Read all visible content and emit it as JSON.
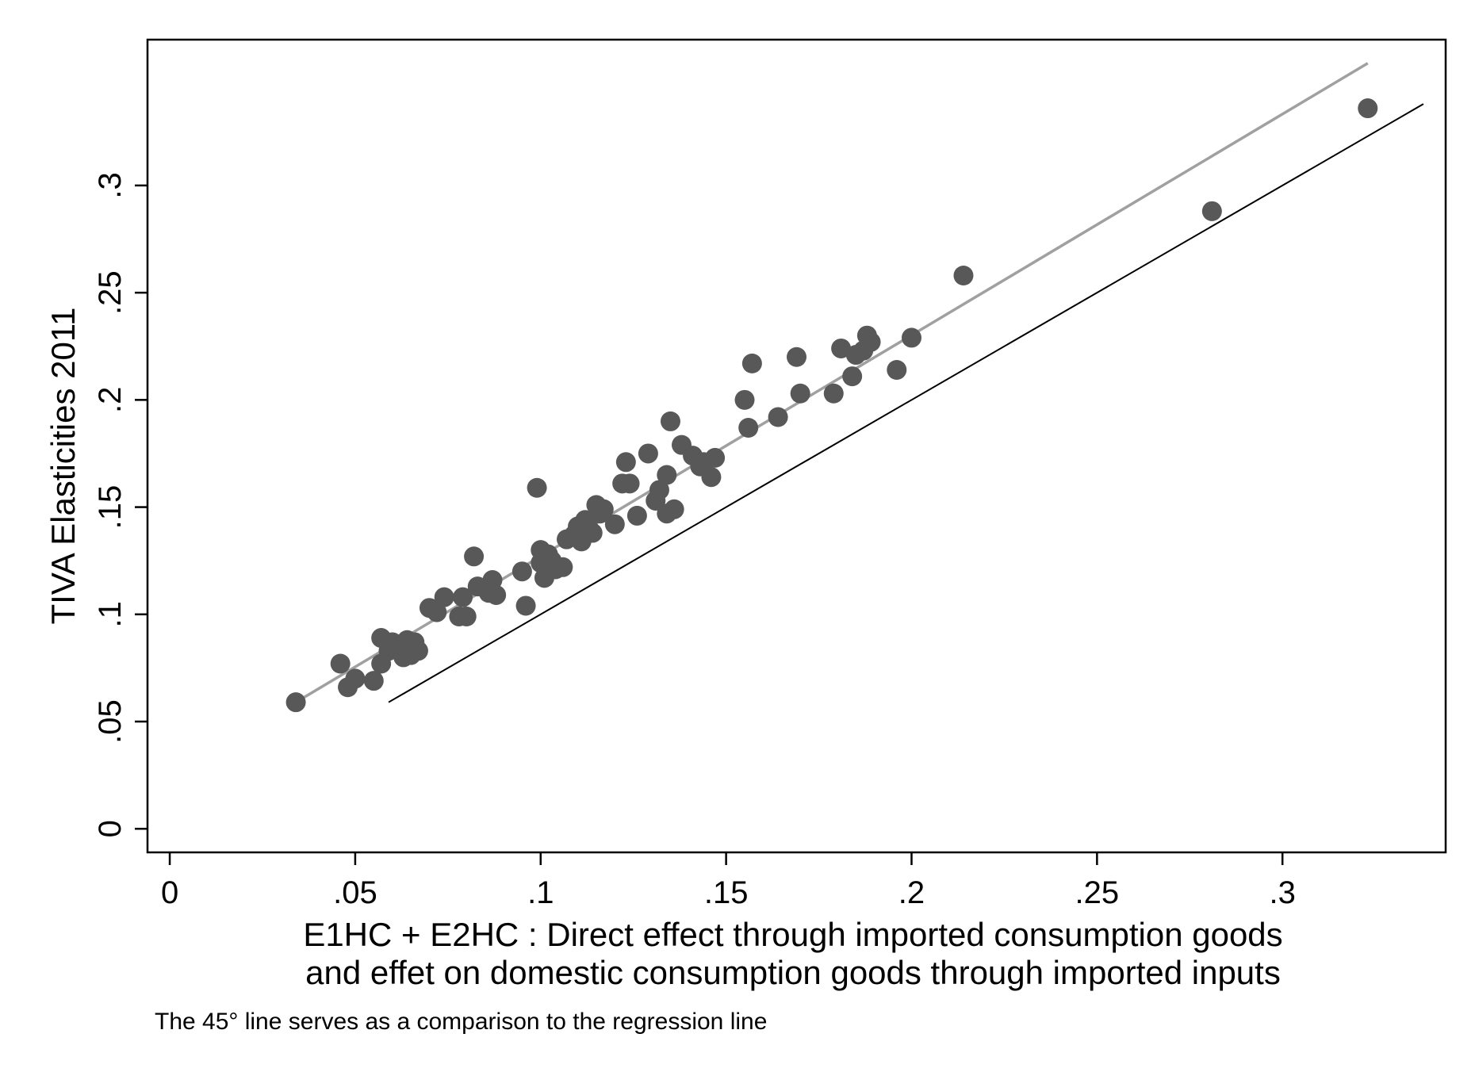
{
  "chart_data": {
    "type": "scatter",
    "title": "",
    "xlabel_lines": [
      "E1HC + E2HC : Direct effect through imported consumption goods",
      "and effet on domestic consumption goods through imported inputs"
    ],
    "ylabel": "TIVA Elasticities 2011",
    "note": "The 45° line serves as a comparison to the regression line",
    "xlim": [
      -0.006,
      0.344
    ],
    "ylim": [
      -0.011,
      0.368
    ],
    "x_ticks": [
      0,
      0.05,
      0.1,
      0.15,
      0.2,
      0.25,
      0.3
    ],
    "x_tick_labels": [
      "0",
      ".05",
      ".1",
      ".15",
      ".2",
      ".25",
      ".3"
    ],
    "y_ticks": [
      0,
      0.05,
      0.1,
      0.15,
      0.2,
      0.25,
      0.3
    ],
    "y_tick_labels": [
      "0",
      ".05",
      ".1",
      ".15",
      ".2",
      ".25",
      ".3"
    ],
    "grid": false,
    "legend": "none",
    "colors": {
      "points": "#585858",
      "regression_line": "#a0a0a0",
      "reference_line": "#000000",
      "frame": "#000000"
    },
    "lines": {
      "regression": {
        "from": [
          0.034,
          0.059
        ],
        "to": [
          0.323,
          0.357
        ]
      },
      "reference_45": {
        "from": [
          0.059,
          0.059
        ],
        "to": [
          0.338,
          0.338
        ]
      }
    },
    "points": [
      [
        0.034,
        0.059
      ],
      [
        0.046,
        0.077
      ],
      [
        0.048,
        0.066
      ],
      [
        0.05,
        0.07
      ],
      [
        0.055,
        0.069
      ],
      [
        0.057,
        0.089
      ],
      [
        0.057,
        0.077
      ],
      [
        0.059,
        0.083
      ],
      [
        0.06,
        0.087
      ],
      [
        0.062,
        0.086
      ],
      [
        0.063,
        0.08
      ],
      [
        0.064,
        0.088
      ],
      [
        0.065,
        0.081
      ],
      [
        0.066,
        0.087
      ],
      [
        0.067,
        0.083
      ],
      [
        0.07,
        0.103
      ],
      [
        0.072,
        0.101
      ],
      [
        0.074,
        0.108
      ],
      [
        0.078,
        0.099
      ],
      [
        0.079,
        0.108
      ],
      [
        0.08,
        0.099
      ],
      [
        0.082,
        0.127
      ],
      [
        0.083,
        0.113
      ],
      [
        0.086,
        0.11
      ],
      [
        0.087,
        0.116
      ],
      [
        0.088,
        0.109
      ],
      [
        0.095,
        0.12
      ],
      [
        0.096,
        0.104
      ],
      [
        0.099,
        0.159
      ],
      [
        0.1,
        0.124
      ],
      [
        0.1,
        0.13
      ],
      [
        0.101,
        0.117
      ],
      [
        0.102,
        0.128
      ],
      [
        0.103,
        0.125
      ],
      [
        0.104,
        0.121
      ],
      [
        0.106,
        0.122
      ],
      [
        0.107,
        0.135
      ],
      [
        0.109,
        0.137
      ],
      [
        0.11,
        0.141
      ],
      [
        0.111,
        0.134
      ],
      [
        0.112,
        0.144
      ],
      [
        0.113,
        0.14
      ],
      [
        0.114,
        0.138
      ],
      [
        0.115,
        0.151
      ],
      [
        0.116,
        0.147
      ],
      [
        0.117,
        0.149
      ],
      [
        0.12,
        0.142
      ],
      [
        0.122,
        0.161
      ],
      [
        0.123,
        0.171
      ],
      [
        0.124,
        0.161
      ],
      [
        0.126,
        0.146
      ],
      [
        0.129,
        0.175
      ],
      [
        0.131,
        0.153
      ],
      [
        0.132,
        0.158
      ],
      [
        0.134,
        0.165
      ],
      [
        0.134,
        0.147
      ],
      [
        0.135,
        0.19
      ],
      [
        0.136,
        0.149
      ],
      [
        0.138,
        0.179
      ],
      [
        0.141,
        0.174
      ],
      [
        0.143,
        0.169
      ],
      [
        0.144,
        0.171
      ],
      [
        0.146,
        0.164
      ],
      [
        0.147,
        0.173
      ],
      [
        0.155,
        0.2
      ],
      [
        0.156,
        0.187
      ],
      [
        0.157,
        0.217
      ],
      [
        0.164,
        0.192
      ],
      [
        0.169,
        0.22
      ],
      [
        0.17,
        0.203
      ],
      [
        0.179,
        0.203
      ],
      [
        0.181,
        0.224
      ],
      [
        0.184,
        0.211
      ],
      [
        0.185,
        0.221
      ],
      [
        0.187,
        0.223
      ],
      [
        0.188,
        0.23
      ],
      [
        0.189,
        0.227
      ],
      [
        0.196,
        0.214
      ],
      [
        0.2,
        0.229
      ],
      [
        0.214,
        0.258
      ],
      [
        0.281,
        0.288
      ],
      [
        0.323,
        0.336
      ]
    ]
  }
}
